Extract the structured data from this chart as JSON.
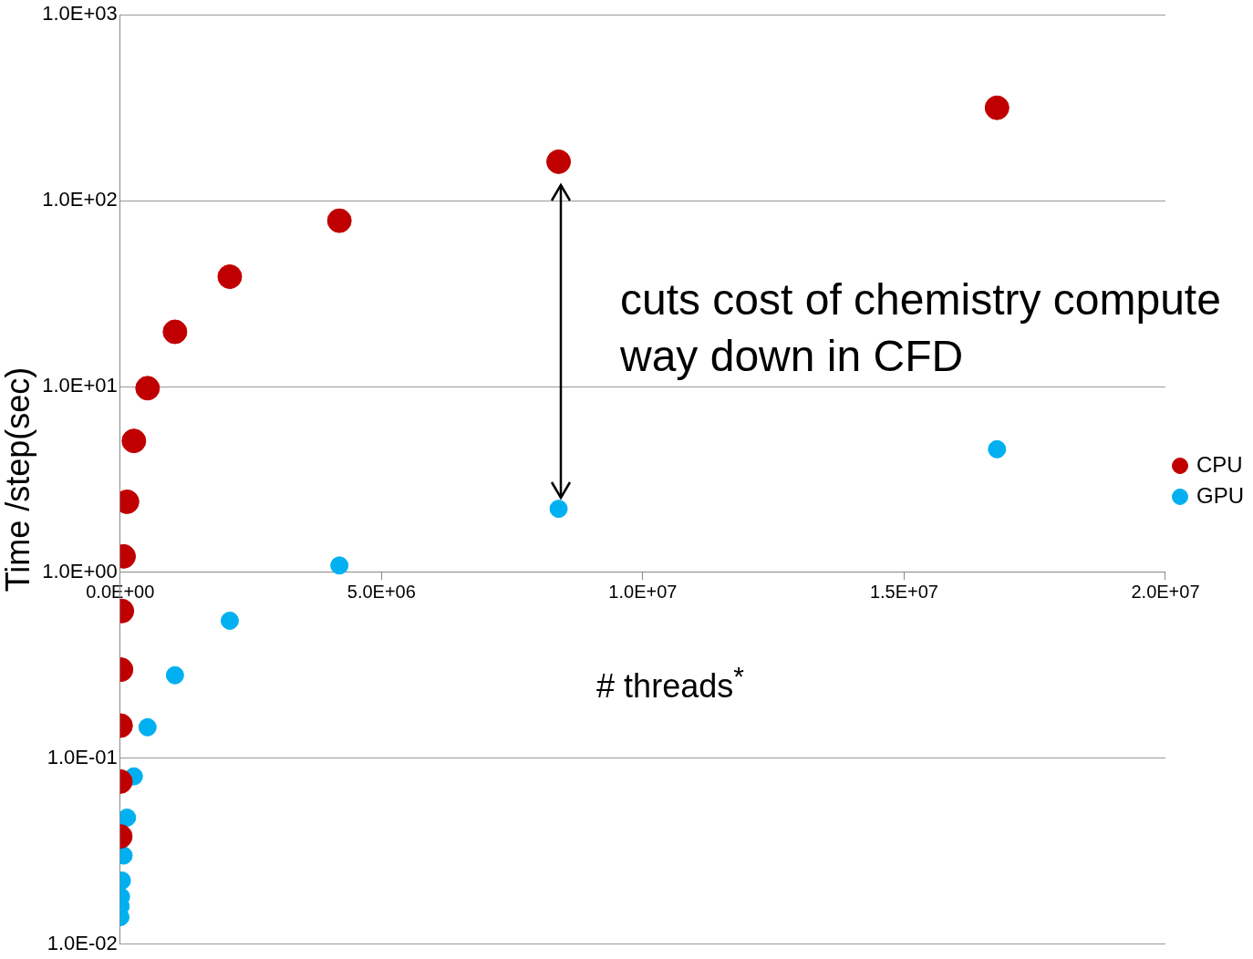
{
  "chart_data": {
    "type": "scatter",
    "xlabel": "# threads$^{*}$",
    "ylabel": "Time /step(sec)",
    "annotations": [
      "cuts cost of chemistry compute way down in CFD"
    ],
    "x": [
      16777216,
      8388608,
      4194304,
      2097152,
      1048576,
      524288,
      262144,
      131072,
      65536,
      32768,
      16384,
      8192,
      4096,
      2048
    ],
    "series": [
      {
        "name": "CPU",
        "color": "#c00000",
        "values": [
          316,
          162,
          78,
          39,
          19.7,
          9.8,
          5.1,
          2.4,
          1.22,
          0.62,
          0.3,
          0.15,
          0.075,
          0.038
        ]
      },
      {
        "name": "GPU",
        "color": "#00b0f0",
        "x": [
          16777216,
          8388608,
          4194304,
          2097152,
          1048576,
          524288,
          262144,
          131072,
          65536,
          32768,
          16384,
          8192,
          4096
        ],
        "values": [
          4.6,
          2.2,
          1.09,
          0.55,
          0.28,
          0.147,
          0.08,
          0.048,
          0.03,
          0.022,
          0.018,
          0.016,
          0.014
        ]
      }
    ],
    "xlim": [
      0,
      20000000
    ],
    "xticks": [
      {
        "value": 0,
        "label": "0.0E+00"
      },
      {
        "value": 5000000,
        "label": "5.0E+06"
      },
      {
        "value": 10000000,
        "label": "1.0E+07"
      },
      {
        "value": 15000000,
        "label": "1.5E+07"
      },
      {
        "value": 20000000,
        "label": "2.0E+07"
      }
    ],
    "ylim": [
      0.01,
      1000
    ],
    "yticks": [
      {
        "value": 0.01,
        "label": "1.0E-02"
      },
      {
        "value": 0.1,
        "label": "1.0E-01"
      },
      {
        "value": 1,
        "label": "1.0E+00"
      },
      {
        "value": 10,
        "label": "1.0E+01"
      },
      {
        "value": 100,
        "label": "1.0E+02"
      },
      {
        "value": 1000,
        "label": "1.0E+03"
      }
    ],
    "log": "y",
    "grid": "y",
    "legend": "right",
    "marker": "circle"
  }
}
